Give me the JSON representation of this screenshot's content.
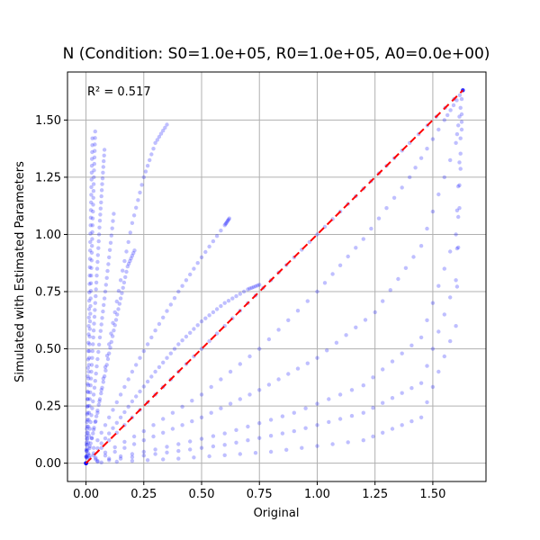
{
  "chart_data": {
    "type": "scatter",
    "title": "N (Condition: S0=1.0e+05, R0=1.0e+05, A0=0.0e+00)",
    "xlabel": "Original",
    "ylabel": "Simulated with Estimated Parameters",
    "xlim": [
      -0.08,
      1.73
    ],
    "ylim": [
      -0.08,
      1.71
    ],
    "xticks": [
      0.0,
      0.25,
      0.5,
      0.75,
      1.0,
      1.25,
      1.5
    ],
    "xtick_labels": [
      "0.00",
      "0.25",
      "0.50",
      "0.75",
      "1.00",
      "1.25",
      "1.50"
    ],
    "yticks": [
      0.0,
      0.25,
      0.5,
      0.75,
      1.0,
      1.25,
      1.5
    ],
    "ytick_labels": [
      "0.00",
      "0.25",
      "0.50",
      "0.75",
      "1.00",
      "1.25",
      "1.50"
    ],
    "grid": true,
    "annotation": "R² = 0.517",
    "point_color": "#0000ff",
    "point_opacity": 0.25,
    "reference_line": {
      "x": [
        0.0,
        1.63
      ],
      "y": [
        0.0,
        1.63
      ],
      "color": "#ff0000",
      "style": "dashed"
    },
    "series": [
      {
        "x": [
          0.0,
          0.004,
          0.008,
          0.012,
          0.016,
          0.02,
          0.024,
          0.028
        ],
        "y": [
          0.0,
          0.18,
          0.38,
          0.6,
          0.82,
          1.04,
          1.24,
          1.42
        ]
      },
      {
        "x": [
          0.0,
          0.005,
          0.01,
          0.015,
          0.02,
          0.025,
          0.03,
          0.035,
          0.04
        ],
        "y": [
          0.0,
          0.16,
          0.34,
          0.52,
          0.72,
          0.92,
          1.1,
          1.28,
          1.45
        ]
      },
      {
        "x": [
          0.0,
          0.01,
          0.02,
          0.03,
          0.04,
          0.05,
          0.06,
          0.07,
          0.08
        ],
        "y": [
          0.0,
          0.16,
          0.34,
          0.52,
          0.7,
          0.88,
          1.06,
          1.22,
          1.37
        ]
      },
      {
        "x": [
          0.0,
          0.02,
          0.04,
          0.06,
          0.08,
          0.1,
          0.12
        ],
        "y": [
          0.0,
          0.18,
          0.36,
          0.55,
          0.72,
          0.9,
          1.09
        ]
      },
      {
        "x": [
          0.0,
          0.03,
          0.06,
          0.09,
          0.12,
          0.15,
          0.18,
          0.21
        ],
        "y": [
          0.0,
          0.13,
          0.28,
          0.43,
          0.58,
          0.72,
          0.86,
          0.93
        ]
      },
      {
        "x": [
          0.0,
          0.05,
          0.1,
          0.15,
          0.2,
          0.25,
          0.3,
          0.35
        ],
        "y": [
          0.0,
          0.22,
          0.52,
          0.8,
          1.05,
          1.25,
          1.4,
          1.48
        ]
      },
      {
        "x": [
          0.0,
          0.1,
          0.2,
          0.3,
          0.4,
          0.5,
          0.6,
          0.62
        ],
        "y": [
          0.0,
          0.2,
          0.4,
          0.58,
          0.75,
          0.9,
          1.04,
          1.07
        ]
      },
      {
        "x": [
          0.0,
          0.1,
          0.2,
          0.3,
          0.4,
          0.5,
          0.6,
          0.7,
          0.75
        ],
        "y": [
          0.0,
          0.13,
          0.27,
          0.4,
          0.52,
          0.62,
          0.7,
          0.76,
          0.78
        ]
      },
      {
        "x": [
          0.0,
          0.2,
          0.4,
          0.6,
          0.8,
          1.0,
          1.2,
          1.4,
          1.63
        ],
        "y": [
          0.0,
          0.2,
          0.4,
          0.6,
          0.8,
          1.0,
          1.2,
          1.4,
          1.63
        ]
      },
      {
        "x": [
          0.0,
          0.25,
          0.5,
          0.75,
          1.0,
          1.2,
          1.4,
          1.55,
          1.63
        ],
        "y": [
          0.0,
          0.14,
          0.3,
          0.5,
          0.75,
          0.98,
          1.25,
          1.5,
          1.63
        ]
      },
      {
        "x": [
          0.0,
          0.25,
          0.5,
          0.75,
          1.0,
          1.25,
          1.45,
          1.6,
          1.63
        ],
        "y": [
          0.0,
          0.1,
          0.2,
          0.32,
          0.46,
          0.66,
          0.95,
          1.4,
          1.63
        ]
      },
      {
        "x": [
          0.0,
          0.3,
          0.6,
          0.9,
          1.2,
          1.45,
          1.6,
          1.63
        ],
        "y": [
          0.0,
          0.06,
          0.13,
          0.22,
          0.34,
          0.55,
          1.0,
          1.63
        ]
      },
      {
        "x": [
          0.0,
          0.3,
          0.6,
          0.9,
          1.2,
          1.45,
          1.6,
          1.63
        ],
        "y": [
          0.0,
          0.04,
          0.08,
          0.14,
          0.22,
          0.35,
          0.8,
          1.63
        ]
      },
      {
        "x": [
          0.0,
          0.4,
          0.8,
          1.2,
          1.45,
          1.6,
          1.63
        ],
        "y": [
          0.0,
          0.02,
          0.05,
          0.1,
          0.2,
          0.6,
          1.63
        ]
      }
    ]
  }
}
